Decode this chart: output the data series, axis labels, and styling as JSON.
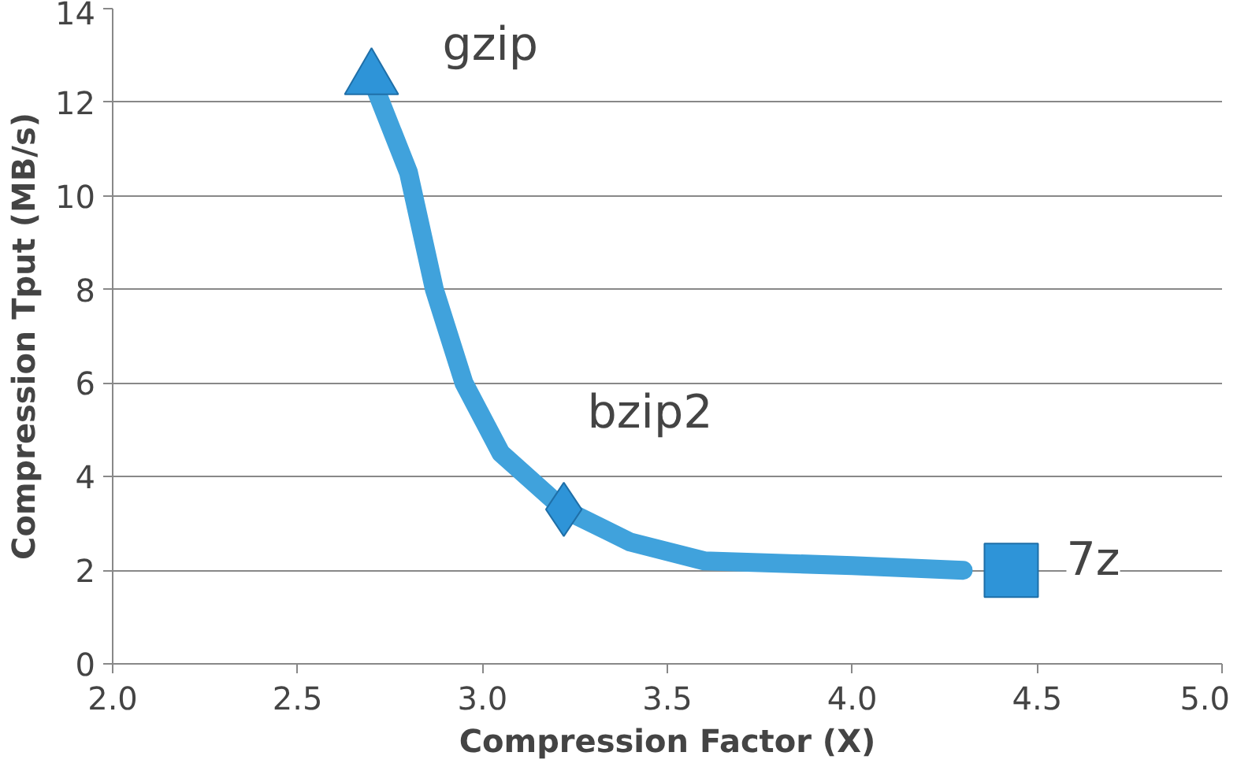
{
  "chart_data": {
    "type": "line",
    "xlabel": "Compression Factor (X)",
    "ylabel": "Compression Tput (MB/s)",
    "xlim": [
      2.0,
      5.0
    ],
    "xticks": [
      {
        "value": 2.0,
        "label": "2.0"
      },
      {
        "value": 2.5,
        "label": "2.5"
      },
      {
        "value": 3.0,
        "label": "3.0"
      },
      {
        "value": 3.5,
        "label": "3.5"
      },
      {
        "value": 4.0,
        "label": "4.0"
      },
      {
        "value": 4.5,
        "label": "4.5"
      },
      {
        "value": 5.0,
        "label": "5.0"
      }
    ],
    "ylim": [
      0,
      14
    ],
    "yticks": [
      0,
      2,
      4,
      6,
      8,
      10,
      12,
      14
    ],
    "grid": "y",
    "series": [
      {
        "color": "#40a2dc",
        "x": [
          2.7,
          2.8,
          2.87,
          2.95,
          3.05,
          3.22,
          3.4,
          3.6,
          4.0,
          4.3
        ],
        "values": [
          12.5,
          10.5,
          8.0,
          6.0,
          4.5,
          3.3,
          2.6,
          2.2,
          2.1,
          2.0
        ]
      },
      {
        "type": "scatter",
        "marker": "triangle",
        "color": "#2e94d8",
        "x": [
          2.7
        ],
        "values": [
          12.5
        ]
      },
      {
        "type": "scatter",
        "marker": "diamond",
        "color": "#2e94d8",
        "x": [
          3.22
        ],
        "values": [
          3.3
        ]
      },
      {
        "type": "scatter",
        "marker": "square",
        "color": "#2e94d8",
        "x": [
          4.43
        ],
        "values": [
          2.0
        ]
      }
    ],
    "annotations": [
      {
        "text": "gzip",
        "x": 2.7,
        "y": 12.5
      },
      {
        "text": "bzip2",
        "x": 3.22,
        "y": 3.3
      },
      {
        "text": "7z",
        "x": 4.43,
        "y": 2.0
      }
    ]
  }
}
